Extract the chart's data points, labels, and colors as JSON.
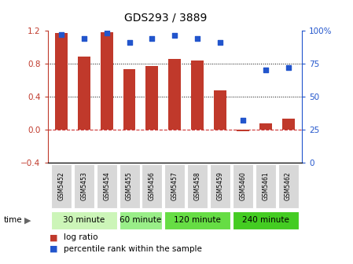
{
  "title": "GDS293 / 3889",
  "samples": [
    "GSM5452",
    "GSM5453",
    "GSM5454",
    "GSM5455",
    "GSM5456",
    "GSM5457",
    "GSM5458",
    "GSM5459",
    "GSM5460",
    "GSM5461",
    "GSM5462"
  ],
  "log_ratio": [
    1.17,
    0.88,
    1.18,
    0.73,
    0.77,
    0.85,
    0.83,
    0.47,
    -0.02,
    0.07,
    0.13
  ],
  "percentile": [
    97,
    94,
    98,
    91,
    94,
    96,
    94,
    91,
    32,
    70,
    72
  ],
  "bar_color": "#C0392B",
  "dot_color": "#2255CC",
  "ylim_left": [
    -0.4,
    1.2
  ],
  "ylim_right": [
    0,
    100
  ],
  "yticks_left": [
    -0.4,
    0.0,
    0.4,
    0.8,
    1.2
  ],
  "yticks_right": [
    0,
    25,
    50,
    75,
    100
  ],
  "yticklabels_right": [
    "0",
    "25",
    "50",
    "75",
    "100%"
  ],
  "groups": [
    {
      "label": "30 minute",
      "start": 0,
      "end": 2,
      "color": "#ccf5b8"
    },
    {
      "label": "60 minute",
      "start": 3,
      "end": 4,
      "color": "#99ee88"
    },
    {
      "label": "120 minute",
      "start": 5,
      "end": 7,
      "color": "#66dd44"
    },
    {
      "label": "240 minute",
      "start": 8,
      "end": 10,
      "color": "#44cc22"
    }
  ],
  "legend_bar": "log ratio",
  "legend_dot": "percentile rank within the sample",
  "zero_line_color": "#cc3333",
  "grid_color": "#000000",
  "bar_width": 0.55
}
